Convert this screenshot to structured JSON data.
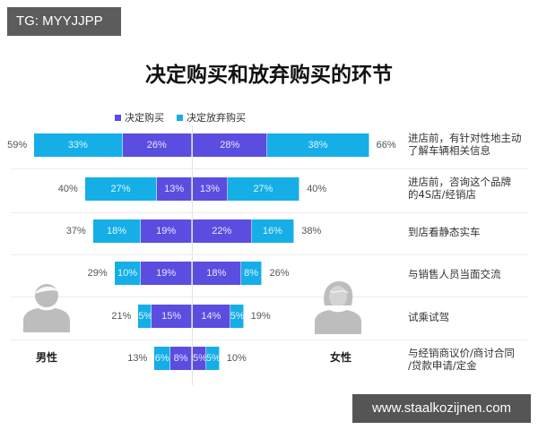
{
  "watermarks": {
    "top": "TG: MYYJJPP",
    "bottom": "www.staalkozijnen.com"
  },
  "title": "决定购买和放弃购买的环节",
  "legend": [
    {
      "label": "决定购买",
      "color": "#5a4de0"
    },
    {
      "label": "决定放弃购买",
      "color": "#15aee6"
    }
  ],
  "genders": {
    "male": {
      "label": "男性",
      "icon": "male-user-icon"
    },
    "female": {
      "label": "女性",
      "icon": "female-user-icon"
    }
  },
  "colors": {
    "buy": "#5a4de0",
    "abandon": "#15aee6",
    "person_icon": "#bdbdbd"
  },
  "chart_data": {
    "type": "bar",
    "subtype": "diverging-stacked-horizontal",
    "title": "决定购买和放弃购买的环节",
    "legend": [
      "决定购买",
      "决定放弃购买"
    ],
    "legend_position": "top-left",
    "left_group": "男性",
    "right_group": "女性",
    "categories": [
      "进店前，有针对性地主动了解车辆相关信息",
      "进店前，咨询这个品牌的4S店/经销店",
      "到店看静态实车",
      "与销售人员当面交流",
      "试乘试驾",
      "与经销商议价/商讨合同/贷款申请/定金"
    ],
    "series": [
      {
        "name": "男性-决定购买",
        "values": [
          26,
          13,
          19,
          19,
          15,
          8
        ]
      },
      {
        "name": "男性-决定放弃购买",
        "values": [
          33,
          27,
          18,
          10,
          5,
          6
        ]
      },
      {
        "name": "女性-决定购买",
        "values": [
          28,
          13,
          22,
          18,
          14,
          5
        ]
      },
      {
        "name": "女性-决定放弃购买",
        "values": [
          38,
          27,
          16,
          8,
          5,
          5
        ]
      }
    ],
    "totals": {
      "男性": [
        59,
        40,
        37,
        29,
        21,
        13
      ],
      "女性": [
        66,
        40,
        38,
        26,
        19,
        10
      ]
    },
    "unit": "%",
    "grid": false
  },
  "rows": [
    {
      "label_lines": [
        "进店前，有针对性地主动",
        "了解车辆相关信息"
      ],
      "male": {
        "total": "59%",
        "abandon": 33,
        "abandon_label": "33%",
        "buy": 26,
        "buy_label": "26%"
      },
      "female": {
        "total": "66%",
        "buy": 28,
        "buy_label": "28%",
        "abandon": 38,
        "abandon_label": "38%"
      }
    },
    {
      "label_lines": [
        "进店前，咨询这个品牌",
        "的4S店/经销店"
      ],
      "male": {
        "total": "40%",
        "abandon": 27,
        "abandon_label": "27%",
        "buy": 13,
        "buy_label": "13%"
      },
      "female": {
        "total": "40%",
        "buy": 13,
        "buy_label": "13%",
        "abandon": 27,
        "abandon_label": "27%"
      }
    },
    {
      "label_lines": [
        "到店看静态实车",
        ""
      ],
      "male": {
        "total": "37%",
        "abandon": 18,
        "abandon_label": "18%",
        "buy": 19,
        "buy_label": "19%"
      },
      "female": {
        "total": "38%",
        "buy": 22,
        "buy_label": "22%",
        "abandon": 16,
        "abandon_label": "16%"
      }
    },
    {
      "label_lines": [
        "与销售人员当面交流",
        ""
      ],
      "male": {
        "total": "29%",
        "abandon": 10,
        "abandon_label": "10%",
        "buy": 19,
        "buy_label": "19%"
      },
      "female": {
        "total": "26%",
        "buy": 18,
        "buy_label": "18%",
        "abandon": 8,
        "abandon_label": "8%"
      }
    },
    {
      "label_lines": [
        "试乘试驾",
        ""
      ],
      "male": {
        "total": "21%",
        "abandon": 5,
        "abandon_label": "5%",
        "buy": 15,
        "buy_label": "15%"
      },
      "female": {
        "total": "19%",
        "buy": 14,
        "buy_label": "14%",
        "abandon": 5,
        "abandon_label": "5%"
      }
    },
    {
      "label_lines": [
        "与经销商议价/商讨合同",
        "/贷款申请/定金"
      ],
      "male": {
        "total": "13%",
        "abandon": 6,
        "abandon_label": "6%",
        "buy": 8,
        "buy_label": "8%"
      },
      "female": {
        "total": "10%",
        "buy": 5,
        "buy_label": "5%",
        "abandon": 5,
        "abandon_label": "5%"
      }
    }
  ]
}
